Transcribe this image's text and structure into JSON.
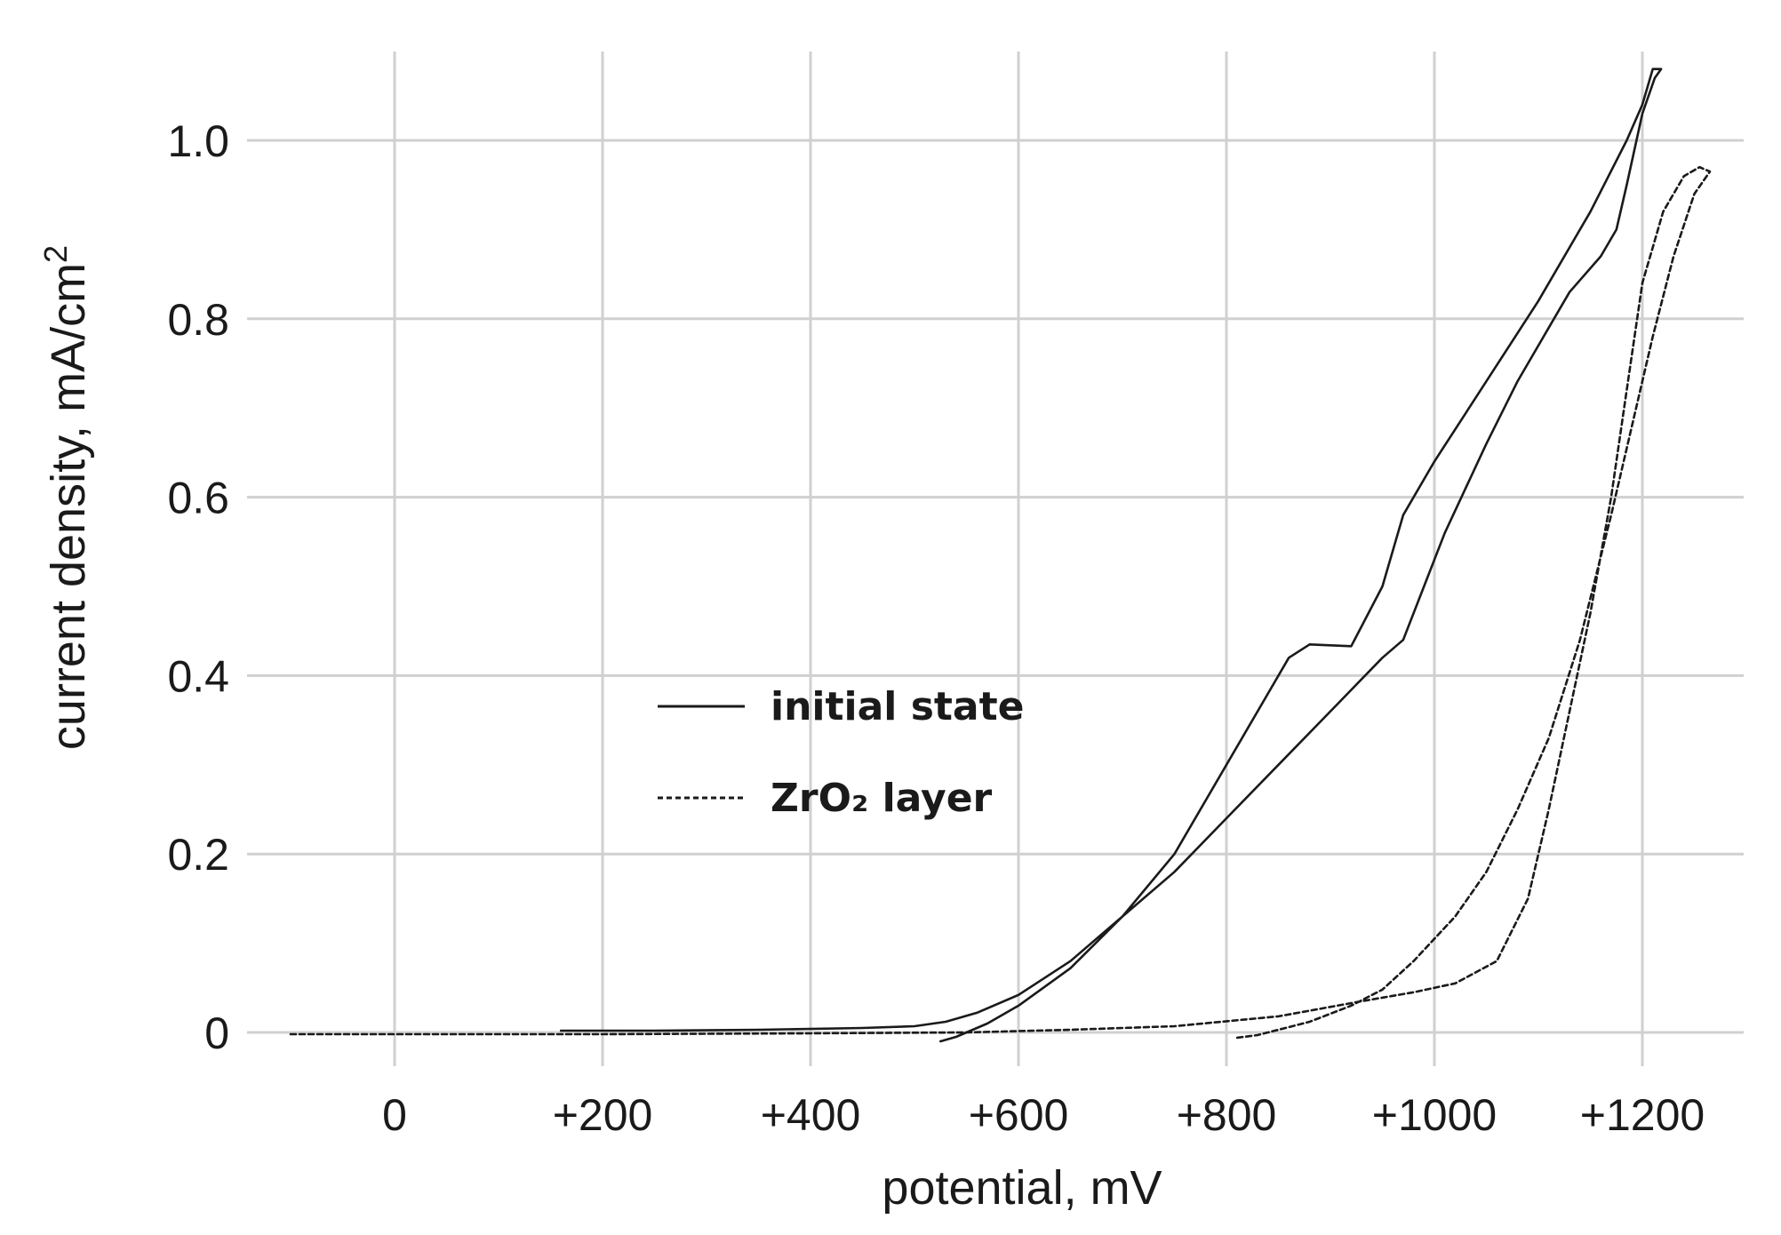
{
  "chart_data": {
    "type": "line",
    "xlabel": "potential, mV",
    "ylabel_main": "current density, mA/cm",
    "ylabel_sup": "2",
    "xlim": [
      -300,
      1300
    ],
    "ylim": [
      -0.04,
      1.1
    ],
    "x_ticks": [
      {
        "value": 0,
        "label": "0"
      },
      {
        "value": 200,
        "label": "+200"
      },
      {
        "value": 400,
        "label": "+400"
      },
      {
        "value": 600,
        "label": "+600"
      },
      {
        "value": 800,
        "label": "+800"
      },
      {
        "value": 1000,
        "label": "+1000"
      },
      {
        "value": 1200,
        "label": "+1200"
      }
    ],
    "y_ticks": [
      {
        "value": 0,
        "label": "0"
      },
      {
        "value": 0.2,
        "label": "0.2"
      },
      {
        "value": 0.4,
        "label": "0.4"
      },
      {
        "value": 0.6,
        "label": "0.6"
      },
      {
        "value": 0.8,
        "label": "0.8"
      },
      {
        "value": 1.0,
        "label": "1.0"
      }
    ],
    "grid": true,
    "legend_position": "center-left",
    "series": [
      {
        "name": "initial state",
        "style": "solid",
        "color": "#1a1a1a",
        "points": [
          [
            160,
            0.002
          ],
          [
            250,
            0.002
          ],
          [
            350,
            0.003
          ],
          [
            450,
            0.005
          ],
          [
            500,
            0.007
          ],
          [
            530,
            0.012
          ],
          [
            560,
            0.022
          ],
          [
            600,
            0.042
          ],
          [
            650,
            0.08
          ],
          [
            700,
            0.13
          ],
          [
            750,
            0.2
          ],
          [
            800,
            0.3
          ],
          [
            840,
            0.38
          ],
          [
            860,
            0.42
          ],
          [
            880,
            0.435
          ],
          [
            920,
            0.433
          ],
          [
            950,
            0.5
          ],
          [
            970,
            0.58
          ],
          [
            1000,
            0.64
          ],
          [
            1050,
            0.73
          ],
          [
            1100,
            0.82
          ],
          [
            1150,
            0.92
          ],
          [
            1185,
            1.0
          ],
          [
            1200,
            1.04
          ],
          [
            1210,
            1.08
          ],
          [
            1218,
            1.08
          ],
          [
            1212,
            1.07
          ],
          [
            1200,
            1.03
          ],
          [
            1185,
            0.95
          ],
          [
            1175,
            0.9
          ],
          [
            1160,
            0.87
          ],
          [
            1130,
            0.83
          ],
          [
            1110,
            0.79
          ],
          [
            1080,
            0.73
          ],
          [
            1050,
            0.66
          ],
          [
            1030,
            0.61
          ],
          [
            1010,
            0.56
          ],
          [
            990,
            0.5
          ],
          [
            970,
            0.44
          ],
          [
            950,
            0.42
          ],
          [
            900,
            0.36
          ],
          [
            850,
            0.3
          ],
          [
            800,
            0.24
          ],
          [
            750,
            0.18
          ],
          [
            700,
            0.13
          ],
          [
            650,
            0.072
          ],
          [
            600,
            0.03
          ],
          [
            570,
            0.01
          ],
          [
            550,
            0.0
          ],
          [
            540,
            -0.005
          ],
          [
            525,
            -0.01
          ]
        ]
      },
      {
        "name": "ZrO₂ layer",
        "style": "dashed",
        "color": "#1a1a1a",
        "points": [
          [
            -100,
            -0.002
          ],
          [
            0,
            -0.002
          ],
          [
            200,
            -0.002
          ],
          [
            400,
            -0.001
          ],
          [
            550,
            0.0
          ],
          [
            650,
            0.003
          ],
          [
            750,
            0.007
          ],
          [
            850,
            0.018
          ],
          [
            930,
            0.035
          ],
          [
            980,
            0.045
          ],
          [
            1020,
            0.055
          ],
          [
            1060,
            0.08
          ],
          [
            1090,
            0.15
          ],
          [
            1110,
            0.25
          ],
          [
            1130,
            0.36
          ],
          [
            1150,
            0.47
          ],
          [
            1170,
            0.6
          ],
          [
            1185,
            0.72
          ],
          [
            1200,
            0.84
          ],
          [
            1220,
            0.92
          ],
          [
            1240,
            0.96
          ],
          [
            1255,
            0.97
          ],
          [
            1265,
            0.965
          ],
          [
            1250,
            0.94
          ],
          [
            1230,
            0.87
          ],
          [
            1210,
            0.78
          ],
          [
            1190,
            0.68
          ],
          [
            1170,
            0.58
          ],
          [
            1140,
            0.44
          ],
          [
            1110,
            0.33
          ],
          [
            1080,
            0.25
          ],
          [
            1050,
            0.18
          ],
          [
            1020,
            0.13
          ],
          [
            980,
            0.08
          ],
          [
            950,
            0.048
          ],
          [
            920,
            0.03
          ],
          [
            880,
            0.012
          ],
          [
            850,
            0.003
          ],
          [
            830,
            -0.003
          ],
          [
            810,
            -0.006
          ]
        ]
      }
    ]
  }
}
